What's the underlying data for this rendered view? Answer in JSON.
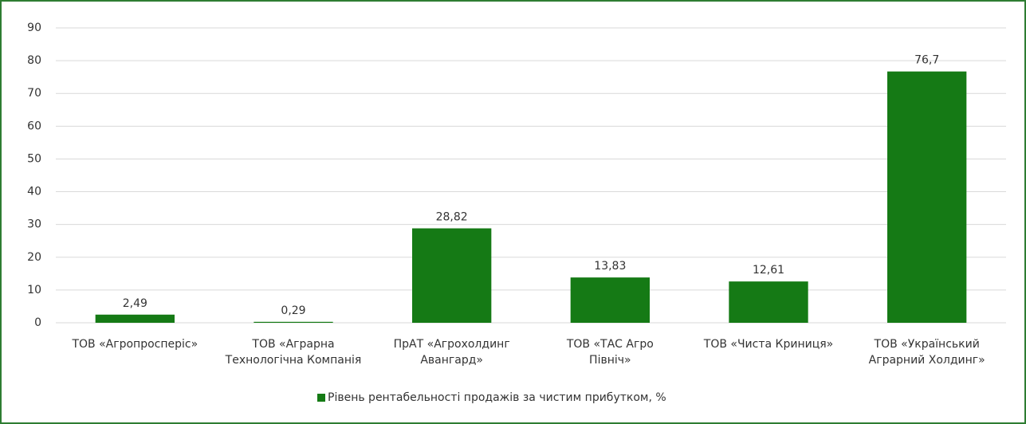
{
  "chart_data": {
    "type": "bar",
    "categories": [
      "ТОВ «Агропросперіс»",
      "ТОВ «Аграрна\nТехнологічна Компанія",
      "ПрАТ «Агрохолдинг\nАвангард»",
      "ТОВ «ТАС Агро\nПівніч»",
      "ТОВ «Чиста Криниця»",
      "ТОВ «Український\nАграрний Холдинг»"
    ],
    "series": [
      {
        "name": "Рівень рентабельності продажів за чистим прибутком, %",
        "color": "#157a15",
        "values": [
          2.49,
          0.29,
          28.82,
          13.83,
          12.61,
          76.7
        ],
        "value_labels": [
          "2,49",
          "0,29",
          "28,82",
          "13,83",
          "12,61",
          "76,7"
        ]
      }
    ],
    "ylim": [
      0,
      90
    ],
    "yticks": [
      0,
      10,
      20,
      30,
      40,
      50,
      60,
      70,
      80,
      90
    ],
    "grid": true,
    "legend": "bottom"
  }
}
